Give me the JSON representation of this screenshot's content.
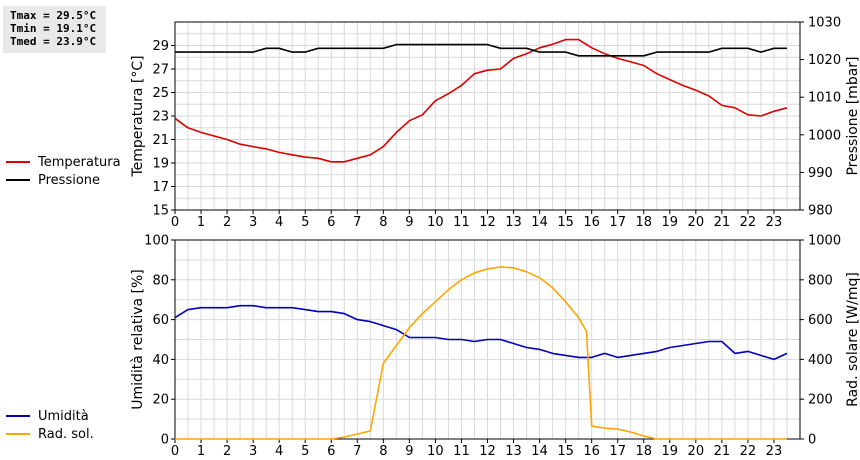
{
  "stats": {
    "tmax": "Tmax = 29.5°C",
    "tmin": "Tmin = 19.1°C",
    "tmed": "Tmed = 23.9°C"
  },
  "legend_top": [
    {
      "label": "Temperatura",
      "color": "#dd0000"
    },
    {
      "label": "Pressione",
      "color": "#000000"
    }
  ],
  "legend_bottom": [
    {
      "label": "Umidità",
      "color": "#0000bb"
    },
    {
      "label": "Rad. sol.",
      "color": "#ffa500"
    }
  ],
  "colors": {
    "grid": "#d9d9d9",
    "temperature": "#dd0000",
    "pressure": "#000000",
    "humidity": "#0000bb",
    "radiation": "#ffa500"
  },
  "chart_data": [
    {
      "type": "line",
      "xlabel": "",
      "ylabel": "Temperatura [°C]",
      "y2label": "Pressione [mbar]",
      "xlim": [
        0,
        24
      ],
      "ylim": [
        15,
        31
      ],
      "y2lim": [
        980,
        1030
      ],
      "x_ticks": [
        0,
        1,
        2,
        3,
        4,
        5,
        6,
        7,
        8,
        9,
        10,
        11,
        12,
        13,
        14,
        15,
        16,
        17,
        18,
        19,
        20,
        21,
        22,
        23
      ],
      "y_ticks": [
        15,
        17,
        19,
        21,
        23,
        25,
        27,
        29
      ],
      "y2_ticks": [
        980,
        990,
        1000,
        1010,
        1020,
        1030
      ],
      "grid": true,
      "series": [
        {
          "name": "Temperatura",
          "axis": "left",
          "x": [
            0,
            0.3,
            0.5,
            1,
            1.5,
            2,
            2.5,
            3,
            3.5,
            4,
            4.5,
            5,
            5.5,
            6,
            6.5,
            7,
            7.5,
            8,
            8.5,
            9,
            9.5,
            10,
            10.5,
            11,
            11.5,
            12,
            12.5,
            13,
            13.5,
            14,
            14.5,
            15,
            15.5,
            16,
            16.5,
            17,
            17.5,
            18,
            18.5,
            19,
            19.5,
            20,
            20.5,
            21,
            21.5,
            22,
            22.5,
            23,
            23.5
          ],
          "values": [
            22.8,
            22.3,
            22.0,
            21.6,
            21.3,
            21.0,
            20.6,
            20.4,
            20.2,
            19.9,
            19.7,
            19.5,
            19.4,
            19.1,
            19.1,
            19.4,
            19.7,
            20.4,
            21.6,
            22.6,
            23.1,
            24.3,
            24.9,
            25.6,
            26.6,
            26.9,
            27.0,
            27.9,
            28.3,
            28.8,
            29.1,
            29.5,
            29.5,
            28.8,
            28.3,
            27.9,
            27.6,
            27.3,
            26.6,
            26.1,
            25.6,
            25.2,
            24.7,
            23.9,
            23.7,
            23.1,
            23.0,
            23.4,
            23.7
          ]
        },
        {
          "name": "Pressione",
          "axis": "right",
          "x": [
            0,
            0.5,
            1,
            1.5,
            2,
            2.5,
            3,
            3.5,
            4,
            4.5,
            5,
            5.5,
            6,
            6.5,
            7,
            7.5,
            8,
            8.5,
            9,
            9.5,
            10,
            10.5,
            11,
            11.5,
            12,
            12.5,
            13,
            13.5,
            14,
            14.5,
            15,
            15.5,
            16,
            16.5,
            17,
            17.5,
            18,
            18.5,
            19,
            19.5,
            20,
            20.5,
            21,
            21.5,
            22,
            22.5,
            23,
            23.5
          ],
          "values": [
            1022,
            1022,
            1022,
            1022,
            1022,
            1022,
            1022,
            1023,
            1023,
            1022,
            1022,
            1023,
            1023,
            1023,
            1023,
            1023,
            1023,
            1024,
            1024,
            1024,
            1024,
            1024,
            1024,
            1024,
            1024,
            1023,
            1023,
            1023,
            1022,
            1022,
            1022,
            1021,
            1021,
            1021,
            1021,
            1021,
            1021,
            1022,
            1022,
            1022,
            1022,
            1022,
            1023,
            1023,
            1023,
            1022,
            1023,
            1023
          ]
        }
      ]
    },
    {
      "type": "line",
      "xlabel": "",
      "ylabel": "Umidità relativa [%]",
      "y2label": "Rad. solare [W/mq]",
      "xlim": [
        0,
        24
      ],
      "ylim": [
        0,
        100
      ],
      "y2lim": [
        0,
        1000
      ],
      "x_ticks": [
        0,
        1,
        2,
        3,
        4,
        5,
        6,
        7,
        8,
        9,
        10,
        11,
        12,
        13,
        14,
        15,
        16,
        17,
        18,
        19,
        20,
        21,
        22,
        23
      ],
      "y_ticks": [
        0,
        20,
        40,
        60,
        80,
        100
      ],
      "y2_ticks": [
        0,
        200,
        400,
        600,
        800,
        1000
      ],
      "grid": true,
      "series": [
        {
          "name": "Umidità",
          "axis": "left",
          "x": [
            0,
            0.5,
            1,
            1.5,
            2,
            2.5,
            3,
            3.5,
            4,
            4.5,
            5,
            5.5,
            6,
            6.5,
            7,
            7.5,
            8,
            8.5,
            9,
            9.5,
            10,
            10.5,
            11,
            11.5,
            12,
            12.5,
            13,
            13.5,
            14,
            14.5,
            15,
            15.5,
            16,
            16.5,
            17,
            17.5,
            18,
            18.5,
            19,
            19.5,
            20,
            20.5,
            21,
            21.5,
            22,
            22.5,
            23,
            23.5
          ],
          "values": [
            61,
            65,
            66,
            66,
            66,
            67,
            67,
            66,
            66,
            66,
            65,
            64,
            64,
            63,
            60,
            59,
            57,
            55,
            51,
            51,
            51,
            50,
            50,
            49,
            50,
            50,
            48,
            46,
            45,
            43,
            42,
            41,
            41,
            43,
            41,
            42,
            43,
            44,
            46,
            47,
            48,
            49,
            49,
            43,
            44,
            42,
            40,
            43
          ]
        },
        {
          "name": "Rad. sol.",
          "axis": "right",
          "x": [
            0,
            1,
            2,
            3,
            4,
            5,
            6,
            6.5,
            7,
            7.5,
            8,
            8.5,
            9,
            9.5,
            10,
            10.5,
            11,
            11.5,
            12,
            12.5,
            13,
            13.5,
            14,
            14.5,
            15,
            15.5,
            15.8,
            16,
            16.5,
            17,
            17.5,
            18,
            18.5,
            19,
            20,
            21,
            22,
            23,
            23.5
          ],
          "values": [
            0,
            0,
            0,
            0,
            0,
            0,
            0,
            10,
            25,
            40,
            380,
            470,
            560,
            630,
            690,
            750,
            800,
            835,
            855,
            865,
            860,
            840,
            810,
            760,
            690,
            610,
            540,
            65,
            55,
            50,
            35,
            15,
            0,
            0,
            0,
            0,
            0,
            0,
            0
          ]
        }
      ]
    }
  ]
}
